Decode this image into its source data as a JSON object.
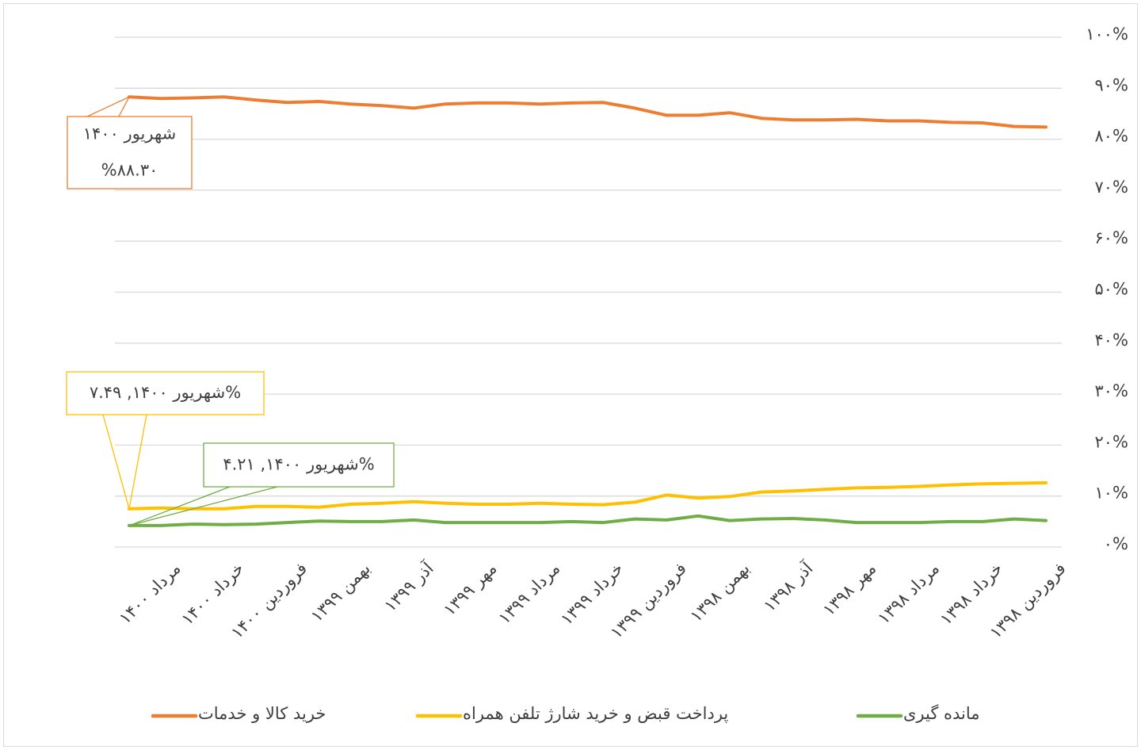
{
  "chart_data": {
    "type": "line",
    "categories": [
      null,
      "مرداد ۱۴۰۰",
      null,
      "خرداد ۱۴۰۰",
      null,
      "فروردین ۱۴۰۰",
      null,
      "بهمن ۱۳۹۹",
      null,
      "آذر ۱۳۹۹",
      null,
      "مهر ۱۳۹۹",
      null,
      "مرداد ۱۳۹۹",
      null,
      "خرداد ۱۳۹۹",
      null,
      "فروردین ۱۳۹۹",
      null,
      "بهمن ۱۳۹۸",
      null,
      "آذر ۱۳۹۸",
      null,
      "مهر ۱۳۹۸",
      null,
      "مرداد ۱۳۹۸",
      null,
      "خرداد ۱۳۹۸",
      null,
      "فروردین ۱۳۹۸"
    ],
    "series": [
      {
        "name": "خرید کالا و خدمات",
        "color": "#ED7D31",
        "values": [
          88.3,
          88.0,
          88.1,
          88.3,
          87.7,
          87.2,
          87.4,
          86.9,
          86.6,
          86.1,
          86.9,
          87.1,
          87.1,
          86.9,
          87.1,
          87.2,
          86.1,
          84.7,
          84.7,
          85.2,
          84.1,
          83.8,
          83.8,
          83.9,
          83.6,
          83.6,
          83.3,
          83.2,
          82.5,
          82.4
        ]
      },
      {
        "name": "پرداخت قبض و خرید شارژ تلفن همراه",
        "color": "#FFC000",
        "values": [
          7.49,
          7.65,
          7.49,
          7.49,
          7.96,
          7.96,
          7.8,
          8.4,
          8.6,
          8.9,
          8.6,
          8.4,
          8.4,
          8.6,
          8.4,
          8.3,
          8.8,
          10.2,
          9.6,
          9.9,
          10.8,
          11.0,
          11.3,
          11.6,
          11.7,
          11.9,
          12.2,
          12.4,
          12.5,
          12.6
        ]
      },
      {
        "name": "مانده گیری",
        "color": "#70AD47",
        "values": [
          4.21,
          4.21,
          4.5,
          4.4,
          4.5,
          4.8,
          5.1,
          5.0,
          5.0,
          5.3,
          4.8,
          4.8,
          4.8,
          4.8,
          5.0,
          4.8,
          5.5,
          5.3,
          6.1,
          5.2,
          5.5,
          5.6,
          5.3,
          4.8,
          4.8,
          4.8,
          5.0,
          5.0,
          5.5,
          5.2
        ]
      }
    ],
    "ylim": [
      0,
      100
    ],
    "yticks": [
      {
        "value": 0,
        "label": "۰%"
      },
      {
        "value": 10,
        "label": "۱۰%"
      },
      {
        "value": 20,
        "label": "۲۰%"
      },
      {
        "value": 30,
        "label": "۳۰%"
      },
      {
        "value": 40,
        "label": "۴۰%"
      },
      {
        "value": 50,
        "label": "۵۰%"
      },
      {
        "value": 60,
        "label": "۶۰%"
      },
      {
        "value": 70,
        "label": "۷۰%"
      },
      {
        "value": 80,
        "label": "۸۰%"
      },
      {
        "value": 90,
        "label": "۹۰%"
      },
      {
        "value": 100,
        "label": "۱۰۰%"
      }
    ],
    "y_axis_side": "right",
    "grid": true,
    "legend": "bottom",
    "annotations": [
      {
        "series": 0,
        "lines": [
          "شهریور ۱۴۰۰",
          "%۸۸.۳۰"
        ]
      },
      {
        "series": 1,
        "lines": [
          "شهریور ۱۴۰۰, ۷.۴۹%"
        ]
      },
      {
        "series": 2,
        "lines": [
          "شهریور ۱۴۰۰, ۴.۲۱%"
        ]
      }
    ]
  }
}
